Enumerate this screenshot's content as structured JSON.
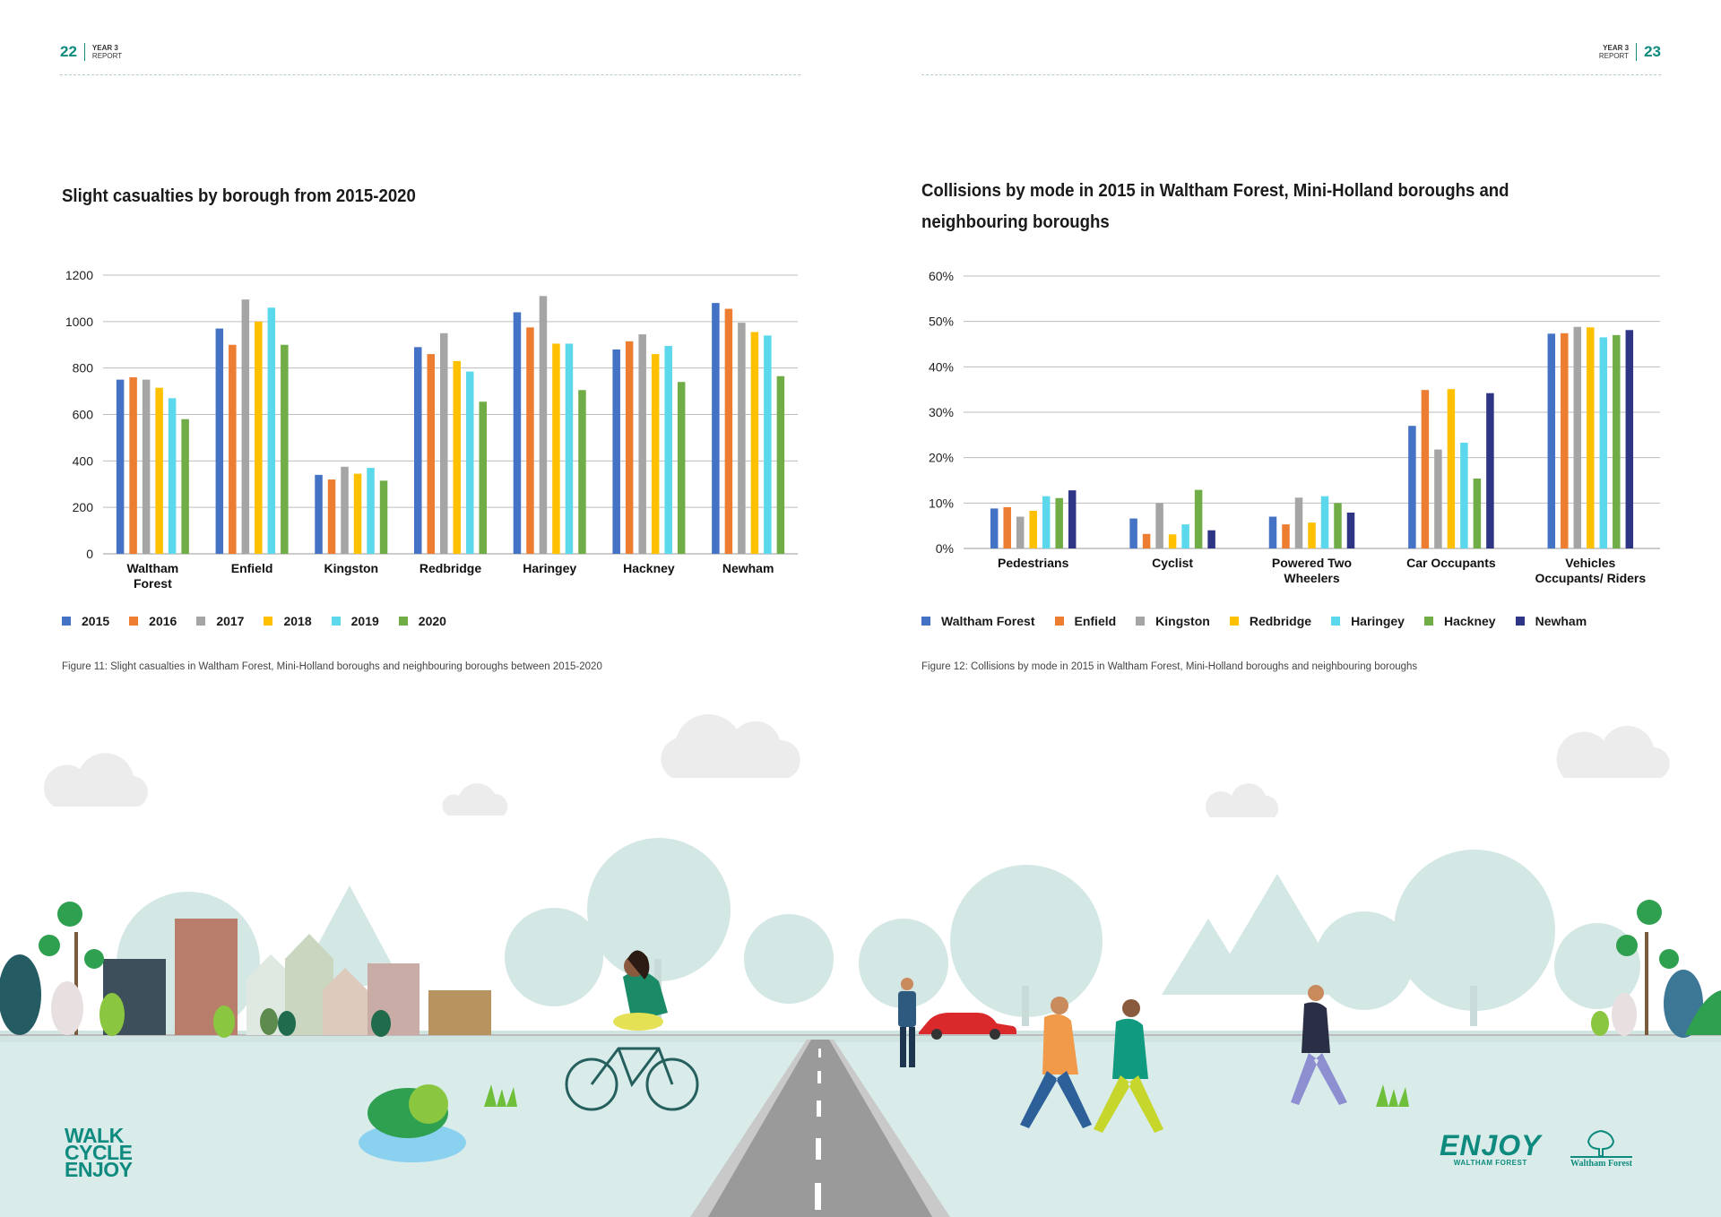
{
  "left_page": {
    "number": "22",
    "label_top": "YEAR 3",
    "label_bottom": "REPORT"
  },
  "right_page": {
    "number": "23",
    "label_top": "YEAR 3",
    "label_bottom": "REPORT"
  },
  "figure11": {
    "title": "Slight casualties by borough from 2015-2020",
    "caption": "Figure 11: Slight casualties in Waltham Forest, Mini-Holland boroughs and neighbouring boroughs between 2015-2020"
  },
  "figure12": {
    "title_line1": "Collisions by mode in 2015 in Waltham Forest, Mini-Holland boroughs and",
    "title_line2": "neighbouring boroughs",
    "caption": "Figure 12: Collisions by mode in 2015 in Waltham Forest, Mini-Holland boroughs and neighbouring boroughs"
  },
  "chart_data": [
    {
      "type": "bar",
      "title": "Slight casualties by borough from 2015-2020",
      "categories": [
        [
          "Waltham",
          "Forest"
        ],
        [
          "Enfield"
        ],
        [
          "Kingston"
        ],
        [
          "Redbridge"
        ],
        [
          "Haringey"
        ],
        [
          "Hackney"
        ],
        [
          "Newham"
        ]
      ],
      "yticks": [
        "0",
        "200",
        "400",
        "600",
        "800",
        "1000",
        "1200"
      ],
      "ylim": [
        0,
        1200
      ],
      "grid": true,
      "legend_position": "bottom-left",
      "series": [
        {
          "name": "2015",
          "color": "#4472c4",
          "values": [
            750,
            970,
            340,
            890,
            1040,
            880,
            1080
          ]
        },
        {
          "name": "2016",
          "color": "#ed7d31",
          "values": [
            760,
            900,
            320,
            860,
            975,
            915,
            1055
          ]
        },
        {
          "name": "2017",
          "color": "#a5a5a5",
          "values": [
            750,
            1095,
            375,
            950,
            1110,
            945,
            995
          ]
        },
        {
          "name": "2018",
          "color": "#ffc000",
          "values": [
            715,
            1000,
            345,
            830,
            905,
            860,
            955
          ]
        },
        {
          "name": "2019",
          "color": "#5bd8ec",
          "values": [
            670,
            1060,
            370,
            785,
            905,
            895,
            940
          ]
        },
        {
          "name": "2020",
          "color": "#70ad47",
          "values": [
            580,
            900,
            315,
            655,
            705,
            740,
            765
          ]
        }
      ]
    },
    {
      "type": "bar",
      "title": "Collisions by mode in 2015 in Waltham Forest, Mini-Holland boroughs and neighbouring boroughs",
      "categories": [
        [
          "Pedestrians"
        ],
        [
          "Cyclist"
        ],
        [
          "Powered Two",
          "Wheelers"
        ],
        [
          "Car Occupants"
        ],
        [
          "Vehicles",
          "Occupants/ Riders"
        ]
      ],
      "yticks": [
        "0%",
        "10%",
        "20%",
        "30%",
        "40%",
        "50%",
        "60%"
      ],
      "ylim": [
        0,
        60
      ],
      "grid": true,
      "legend_position": "bottom-left",
      "series": [
        {
          "name": "Waltham Forest",
          "color": "#4472c4",
          "values": [
            8.8,
            6.6,
            7.0,
            27.0,
            47.3
          ]
        },
        {
          "name": "Enfield",
          "color": "#ed7d31",
          "values": [
            9.1,
            3.2,
            5.3,
            34.9,
            47.4
          ]
        },
        {
          "name": "Kingston",
          "color": "#a5a5a5",
          "values": [
            7.0,
            10.0,
            11.2,
            21.8,
            48.8
          ]
        },
        {
          "name": "Redbridge",
          "color": "#ffc000",
          "values": [
            8.3,
            3.1,
            5.7,
            35.1,
            48.7
          ]
        },
        {
          "name": "Haringey",
          "color": "#5bd8ec",
          "values": [
            11.5,
            5.3,
            11.5,
            23.3,
            46.5
          ]
        },
        {
          "name": "Hackney",
          "color": "#70ad47",
          "values": [
            11.1,
            12.9,
            10.0,
            15.4,
            47.0
          ]
        },
        {
          "name": "Newham",
          "color": "#2e3585",
          "values": [
            12.8,
            4.0,
            7.9,
            34.2,
            48.1
          ]
        }
      ]
    }
  ],
  "brand": {
    "wce": [
      "WALK",
      "CYCLE",
      "ENJOY"
    ],
    "enjoy_big": "ENJOY",
    "enjoy_small": "WALTHAM FOREST",
    "wf_name": "Waltham Forest"
  },
  "colors": {
    "accent": "#0f8a7e",
    "ground": "#d9ecea",
    "scenery": "#d3e7e4"
  }
}
